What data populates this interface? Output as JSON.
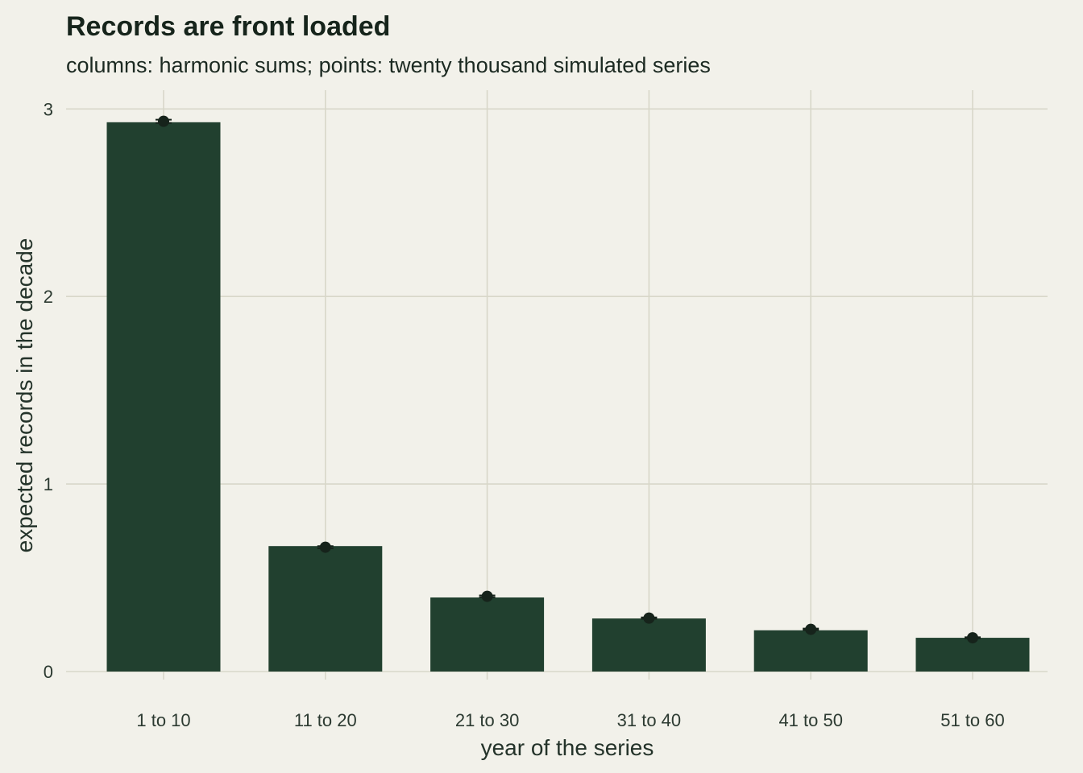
{
  "chart_data": {
    "type": "bar",
    "title": "Records are front loaded",
    "subtitle": "columns: harmonic sums; points: twenty thousand simulated series",
    "xlabel": "year of the series",
    "ylabel": "expected records in the decade",
    "categories": [
      "1 to 10",
      "11 to 20",
      "21 to 30",
      "31 to 40",
      "41 to 50",
      "51 to 60"
    ],
    "series": [
      {
        "values": [
          2.929,
          0.669,
          0.395,
          0.283,
          0.22,
          0.18
        ]
      },
      {
        "values": [
          2.934,
          0.663,
          0.401,
          0.285,
          0.225,
          0.18
        ],
        "error_low": [
          2.925,
          0.657,
          0.396,
          0.281,
          0.221,
          0.177
        ],
        "error_high": [
          2.943,
          0.669,
          0.406,
          0.289,
          0.229,
          0.183
        ]
      }
    ],
    "ylim": [
      0,
      3.1
    ],
    "yticks": [
      0,
      1,
      2,
      3
    ],
    "grid": true,
    "colors": {
      "background": "#f2f1ea",
      "bar": "#21402f",
      "point": "#16231b",
      "grid": "#d8d7c9"
    }
  }
}
